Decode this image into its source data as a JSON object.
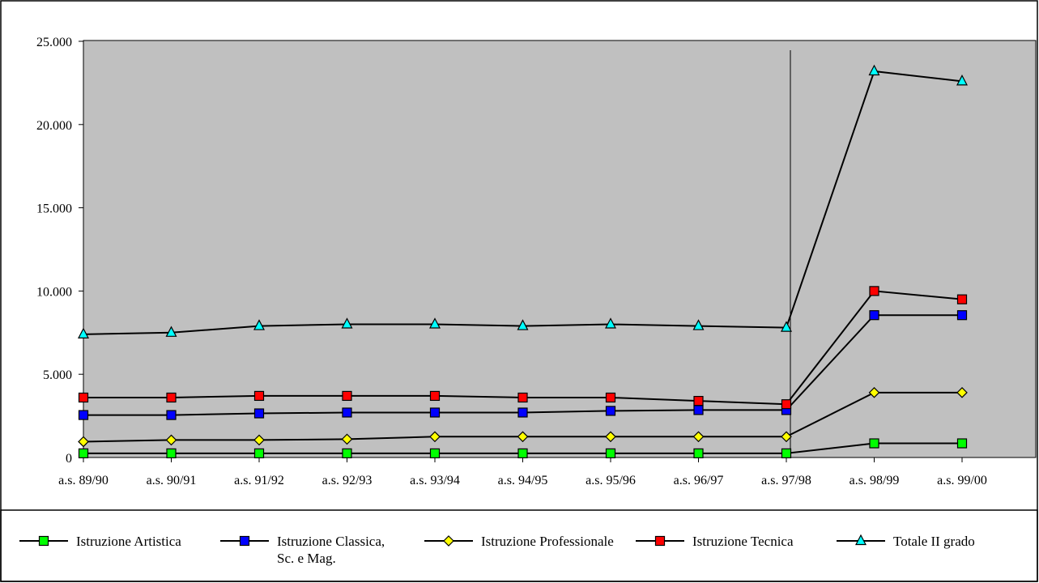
{
  "chart_data": {
    "type": "line",
    "title": "",
    "xlabel": "",
    "ylabel": "",
    "ylim": [
      0,
      25000
    ],
    "yticks": [
      0,
      5000,
      10000,
      15000,
      20000,
      25000
    ],
    "ytick_labels": [
      "0",
      "5.000",
      "10.000",
      "15.000",
      "20.000",
      "25.000"
    ],
    "categories": [
      "a.s. 89/90",
      "a.s. 90/91",
      "a.s. 91/92",
      "a.s. 92/93",
      "a.s. 93/94",
      "a.s. 94/95",
      "a.s. 95/96",
      "a.s. 96/97",
      "a.s. 97/98",
      "a.s. 98/99",
      "a.s. 99/00"
    ],
    "plot_background": "#c0c0c0",
    "grid": false,
    "legend_position": "bottom",
    "vertical_marker_after_category": "a.s. 97/98",
    "series": [
      {
        "name": "Istruzione Artistica",
        "marker": "square",
        "color": "#00ff00",
        "values": [
          250,
          250,
          250,
          250,
          250,
          250,
          250,
          250,
          250,
          850,
          850
        ]
      },
      {
        "name": "Istruzione Classica, Sc. e Mag.",
        "marker": "square",
        "color": "#0000ff",
        "values": [
          2550,
          2550,
          2650,
          2700,
          2700,
          2700,
          2800,
          2850,
          2850,
          8550,
          8550
        ]
      },
      {
        "name": "Istruzione Professionale",
        "marker": "diamond",
        "color": "#ffff00",
        "values": [
          950,
          1050,
          1050,
          1100,
          1250,
          1250,
          1250,
          1250,
          1250,
          3900,
          3900
        ]
      },
      {
        "name": "Istruzione Tecnica",
        "marker": "square",
        "color": "#ff0000",
        "values": [
          3600,
          3600,
          3700,
          3700,
          3700,
          3600,
          3600,
          3400,
          3200,
          10000,
          9500
        ]
      },
      {
        "name": "Totale II grado",
        "marker": "triangle",
        "color": "#00ffff",
        "values": [
          7400,
          7500,
          7900,
          8000,
          8000,
          7900,
          8000,
          7900,
          7800,
          23200,
          22600
        ]
      }
    ]
  }
}
